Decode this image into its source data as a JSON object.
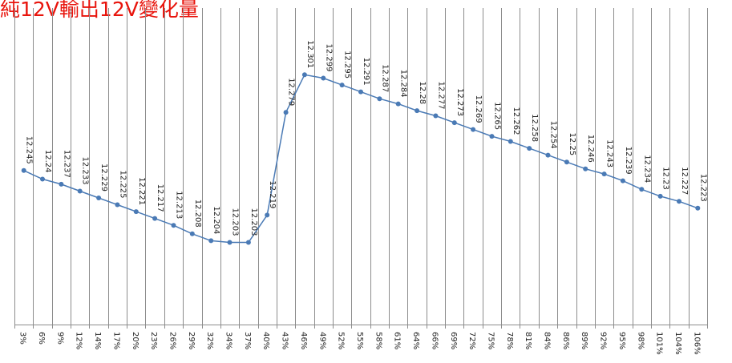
{
  "chart_data": {
    "type": "line",
    "title": "純12V輸出12V變化量",
    "categories": [
      "3%",
      "6%",
      "9%",
      "12%",
      "14%",
      "17%",
      "20%",
      "23%",
      "26%",
      "29%",
      "32%",
      "34%",
      "37%",
      "40%",
      "43%",
      "46%",
      "49%",
      "52%",
      "55%",
      "58%",
      "61%",
      "64%",
      "66%",
      "69%",
      "72%",
      "75%",
      "78%",
      "81%",
      "84%",
      "86%",
      "89%",
      "92%",
      "95%",
      "98%",
      "101%",
      "104%",
      "106%"
    ],
    "series": [
      {
        "values": [
          12.245,
          12.24,
          12.237,
          12.233,
          12.229,
          12.225,
          12.221,
          12.217,
          12.213,
          12.208,
          12.204,
          12.203,
          12.203,
          12.219,
          12.279,
          12.301,
          12.299,
          12.295,
          12.291,
          12.287,
          12.284,
          12.28,
          12.277,
          12.273,
          12.269,
          12.265,
          12.262,
          12.258,
          12.254,
          12.25,
          12.246,
          12.243,
          12.239,
          12.234,
          12.23,
          12.227,
          12.223
        ],
        "color": "#4a7ab5"
      }
    ],
    "ylim": [
      12.155,
      12.34
    ],
    "grid": "vertical",
    "legend": "none",
    "data_labels": true
  }
}
